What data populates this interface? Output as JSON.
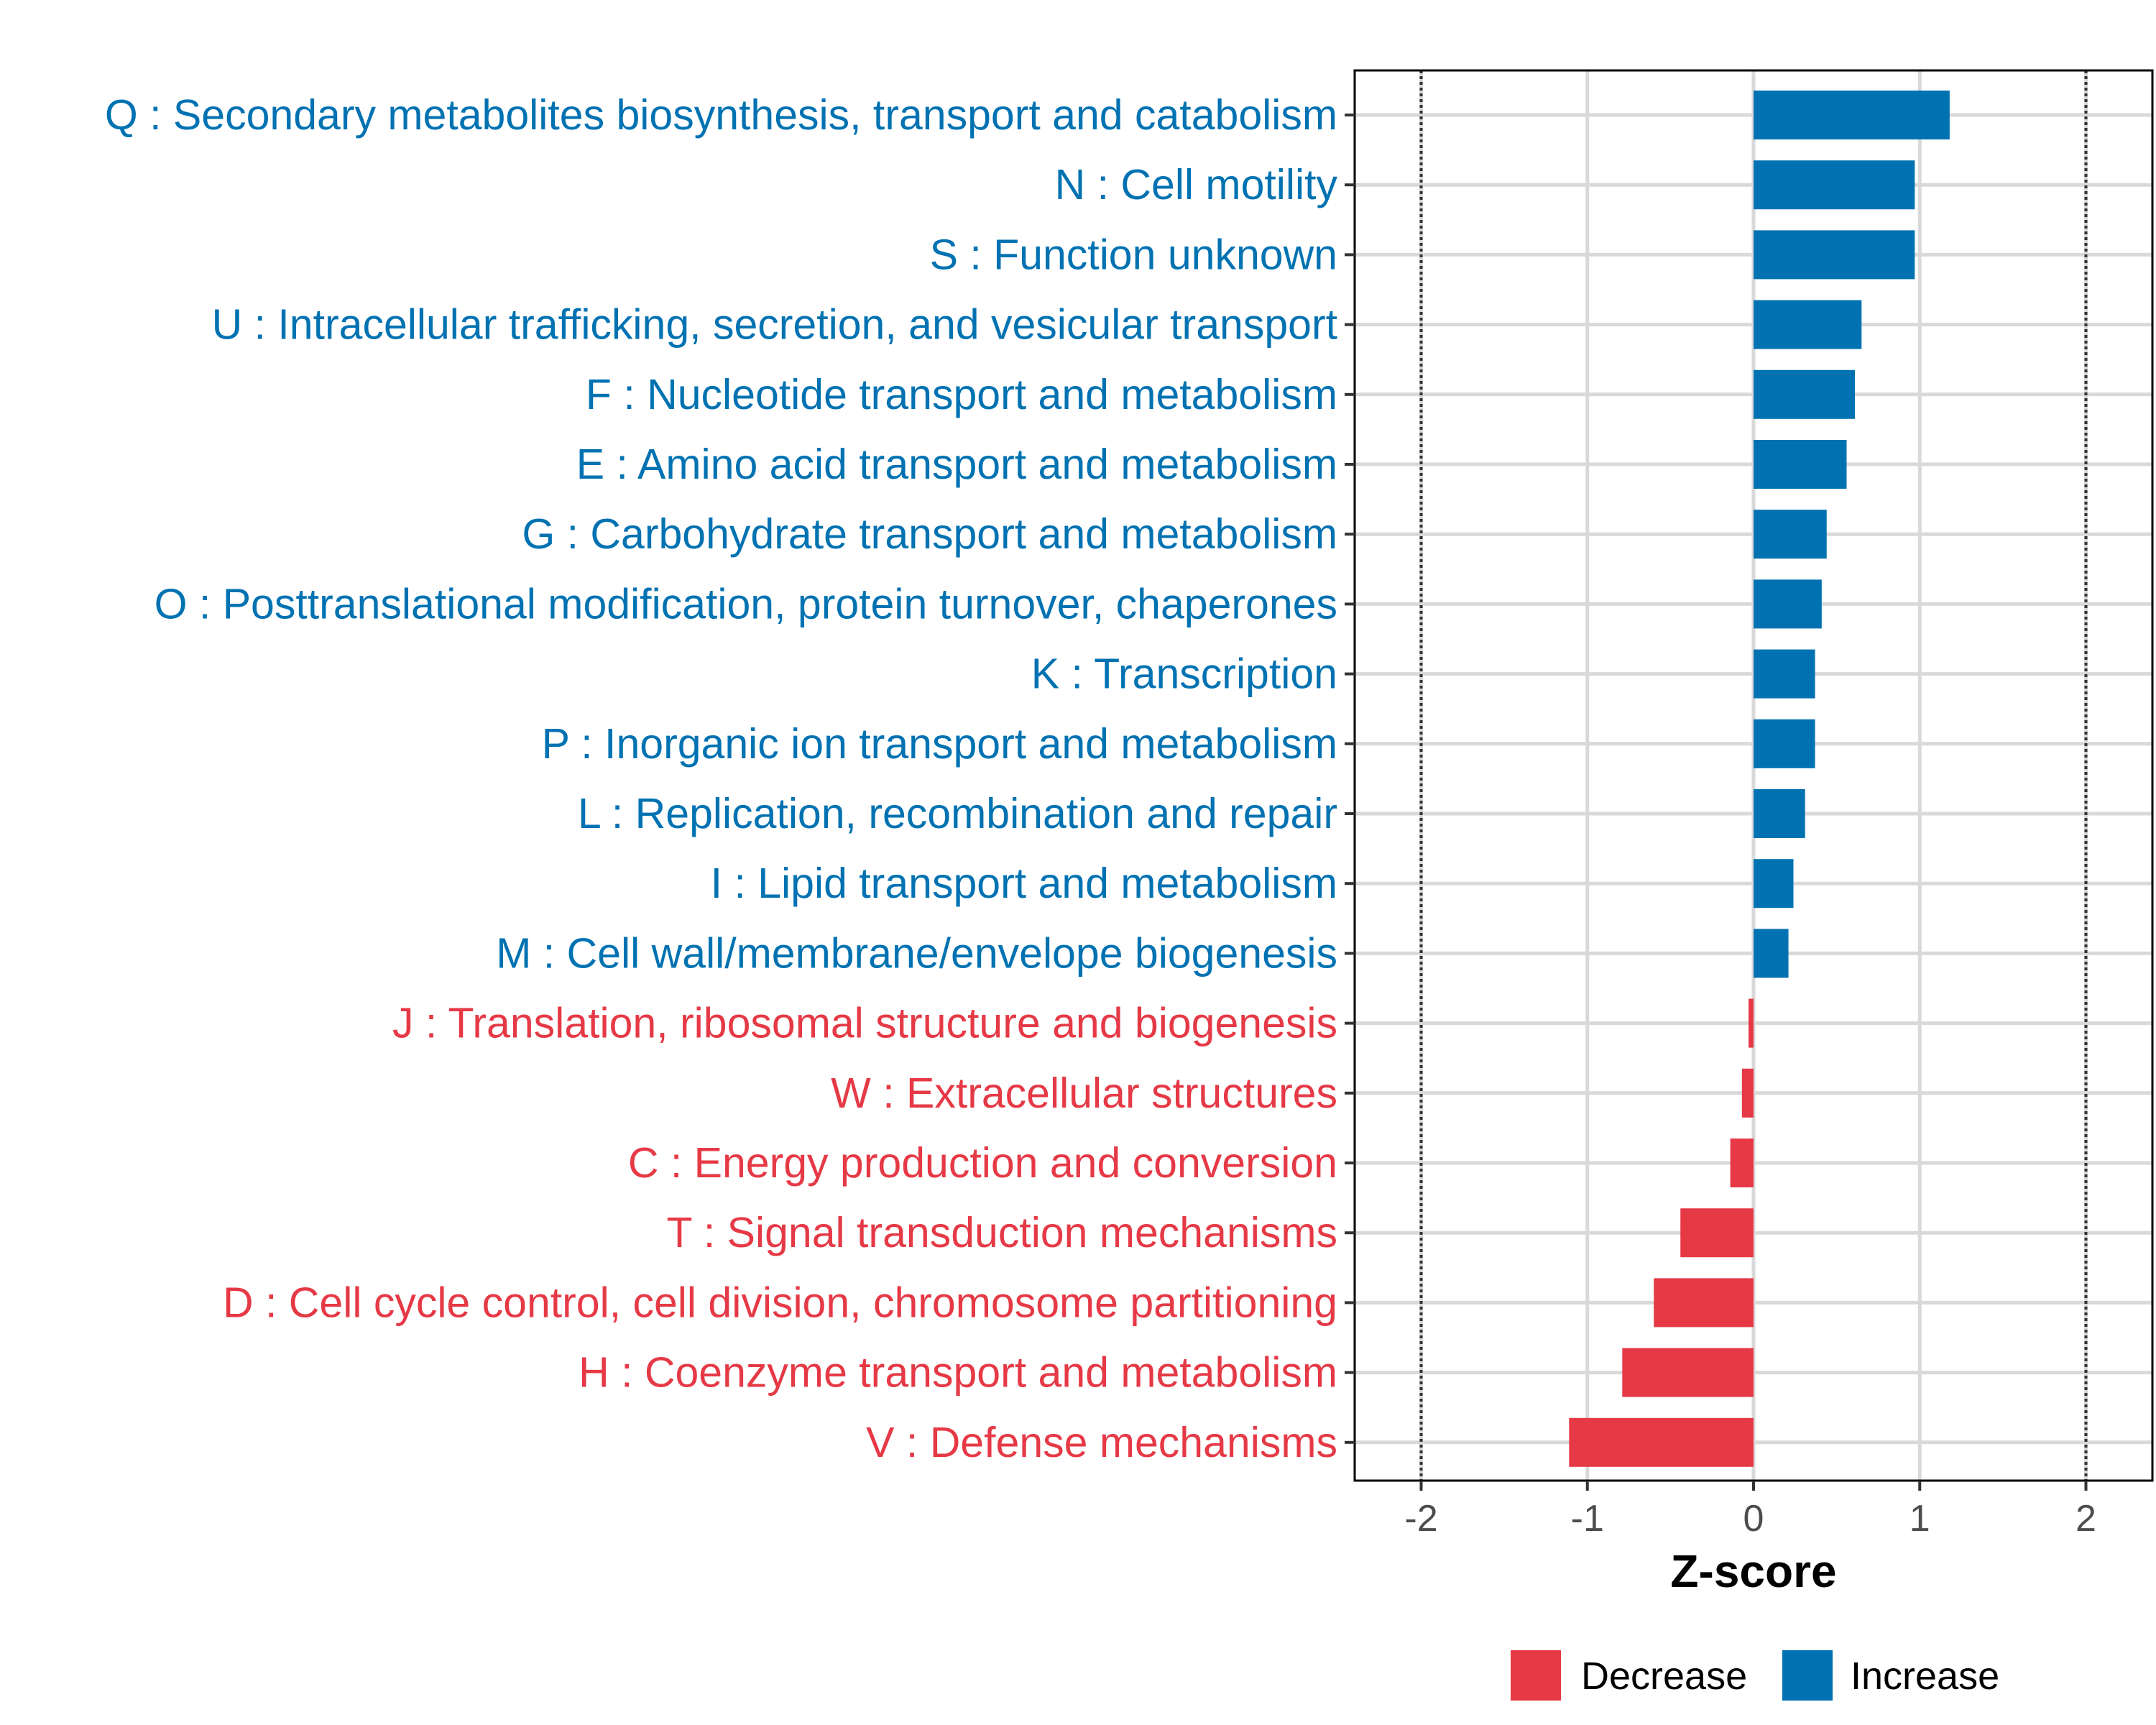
{
  "chart_data": {
    "type": "bar",
    "orientation": "horizontal",
    "title": "",
    "xlabel": "Z-score",
    "ylabel": "",
    "xlim": [
      -2.4,
      2.4
    ],
    "xticks": [
      -2,
      -1,
      0,
      1,
      2
    ],
    "xtick_labels": [
      "-2",
      "-1",
      "0",
      "1",
      "2"
    ],
    "reference_lines": [
      -2,
      2
    ],
    "grid": true,
    "colors": {
      "Decrease": "#e63946",
      "Increase": "#0072b2"
    },
    "categories": [
      "Q : Secondary metabolites biosynthesis, transport and catabolism",
      "N : Cell motility",
      "S : Function unknown",
      "U : Intracellular trafficking, secretion, and vesicular transport",
      "F : Nucleotide transport and metabolism",
      "E : Amino acid transport and metabolism",
      "G : Carbohydrate transport and metabolism",
      "O : Posttranslational modification, protein turnover, chaperones",
      "K : Transcription",
      "P : Inorganic ion transport and metabolism",
      "L : Replication, recombination and repair",
      "I : Lipid transport and metabolism",
      "M : Cell wall/membrane/envelope biogenesis",
      "J : Translation, ribosomal structure and biogenesis",
      "W : Extracellular structures",
      "C : Energy production and conversion",
      "T : Signal transduction mechanisms",
      "D : Cell cycle control, cell division, chromosome partitioning",
      "H : Coenzyme transport and metabolism",
      "V : Defense mechanisms"
    ],
    "values": [
      1.18,
      0.97,
      0.97,
      0.65,
      0.61,
      0.56,
      0.44,
      0.41,
      0.37,
      0.37,
      0.31,
      0.24,
      0.21,
      -0.03,
      -0.07,
      -0.14,
      -0.44,
      -0.6,
      -0.79,
      -1.11
    ],
    "groups": [
      "Increase",
      "Increase",
      "Increase",
      "Increase",
      "Increase",
      "Increase",
      "Increase",
      "Increase",
      "Increase",
      "Increase",
      "Increase",
      "Increase",
      "Increase",
      "Decrease",
      "Decrease",
      "Decrease",
      "Decrease",
      "Decrease",
      "Decrease",
      "Decrease"
    ],
    "legend": {
      "position": "bottom",
      "entries": [
        {
          "label": "Decrease",
          "color": "#e63946"
        },
        {
          "label": "Increase",
          "color": "#0072b2"
        }
      ]
    }
  }
}
